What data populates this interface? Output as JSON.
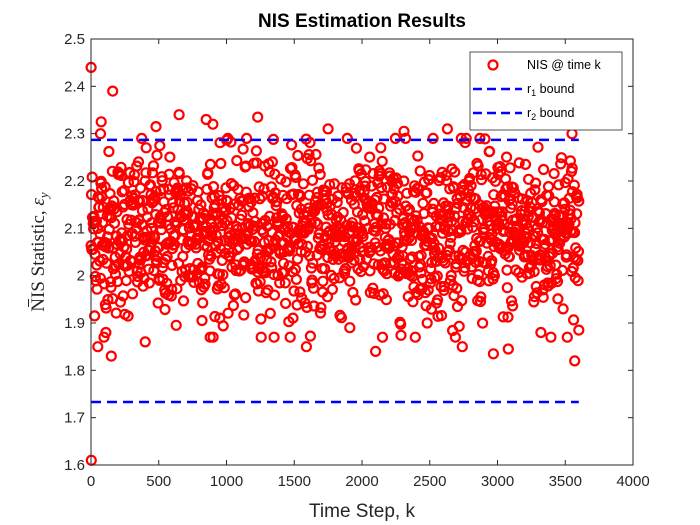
{
  "chart_data": {
    "type": "scatter",
    "title": "NIS Estimation Results",
    "xlabel": "Time Step, k",
    "ylabel_main": "NIS Statistic, ",
    "ylabel_symbol": "ε",
    "ylabel_subscript": "y",
    "xlim": [
      0,
      4000
    ],
    "ylim": [
      1.6,
      2.5
    ],
    "xticks": [
      "0",
      "500",
      "1000",
      "1500",
      "2000",
      "2500",
      "3000",
      "3500",
      "4000"
    ],
    "yticks": [
      "1.6",
      "1.7",
      "1.8",
      "1.9",
      "2",
      "2.1",
      "2.2",
      "2.3",
      "2.4",
      "2.5"
    ],
    "grid": false,
    "legend_position": "top-right",
    "series": [
      {
        "name": "NIS @ time k",
        "kind": "scatter",
        "color": "#ff0000",
        "marker": "circle-open",
        "count": 3600,
        "x_range": [
          1,
          3600
        ],
        "distribution": {
          "mean": 2.09,
          "std": 0.085
        },
        "notable_points": [
          {
            "x": 1,
            "y": 2.44
          },
          {
            "x": 2,
            "y": 1.61
          },
          {
            "x": 160,
            "y": 2.39
          },
          {
            "x": 75,
            "y": 2.325
          },
          {
            "x": 70,
            "y": 2.3
          },
          {
            "x": 650,
            "y": 2.34
          },
          {
            "x": 1230,
            "y": 2.335
          },
          {
            "x": 850,
            "y": 2.33
          },
          {
            "x": 900,
            "y": 2.32
          },
          {
            "x": 3570,
            "y": 1.82
          },
          {
            "x": 3550,
            "y": 2.3
          },
          {
            "x": 150,
            "y": 1.83
          },
          {
            "x": 50,
            "y": 1.85
          },
          {
            "x": 2100,
            "y": 1.84
          },
          {
            "x": 1590,
            "y": 1.85
          },
          {
            "x": 2970,
            "y": 1.835
          },
          {
            "x": 3080,
            "y": 1.845
          },
          {
            "x": 2740,
            "y": 1.85
          },
          {
            "x": 2630,
            "y": 2.31
          },
          {
            "x": 2310,
            "y": 2.305
          },
          {
            "x": 1750,
            "y": 2.31
          },
          {
            "x": 480,
            "y": 2.315
          },
          {
            "x": 3600,
            "y": 1.885
          },
          {
            "x": 110,
            "y": 1.88
          },
          {
            "x": 400,
            "y": 1.86
          },
          {
            "x": 880,
            "y": 1.87
          },
          {
            "x": 1910,
            "y": 1.89
          },
          {
            "x": 3320,
            "y": 1.88
          },
          {
            "x": 2870,
            "y": 2.29
          }
        ]
      },
      {
        "name": "r₁ bound",
        "kind": "line",
        "style": "dashed",
        "color": "#0000ff",
        "y": 2.287,
        "x_range": [
          0,
          3600
        ]
      },
      {
        "name": "r₂ bound",
        "kind": "line",
        "style": "dashed",
        "color": "#0000ff",
        "y": 1.733,
        "x_range": [
          0,
          3600
        ]
      }
    ],
    "legend": [
      {
        "label": "NIS @ time k"
      },
      {
        "label_main": "r",
        "label_sub": "1",
        "label_rest": " bound"
      },
      {
        "label_main": "r",
        "label_sub": "2",
        "label_rest": " bound"
      }
    ]
  }
}
